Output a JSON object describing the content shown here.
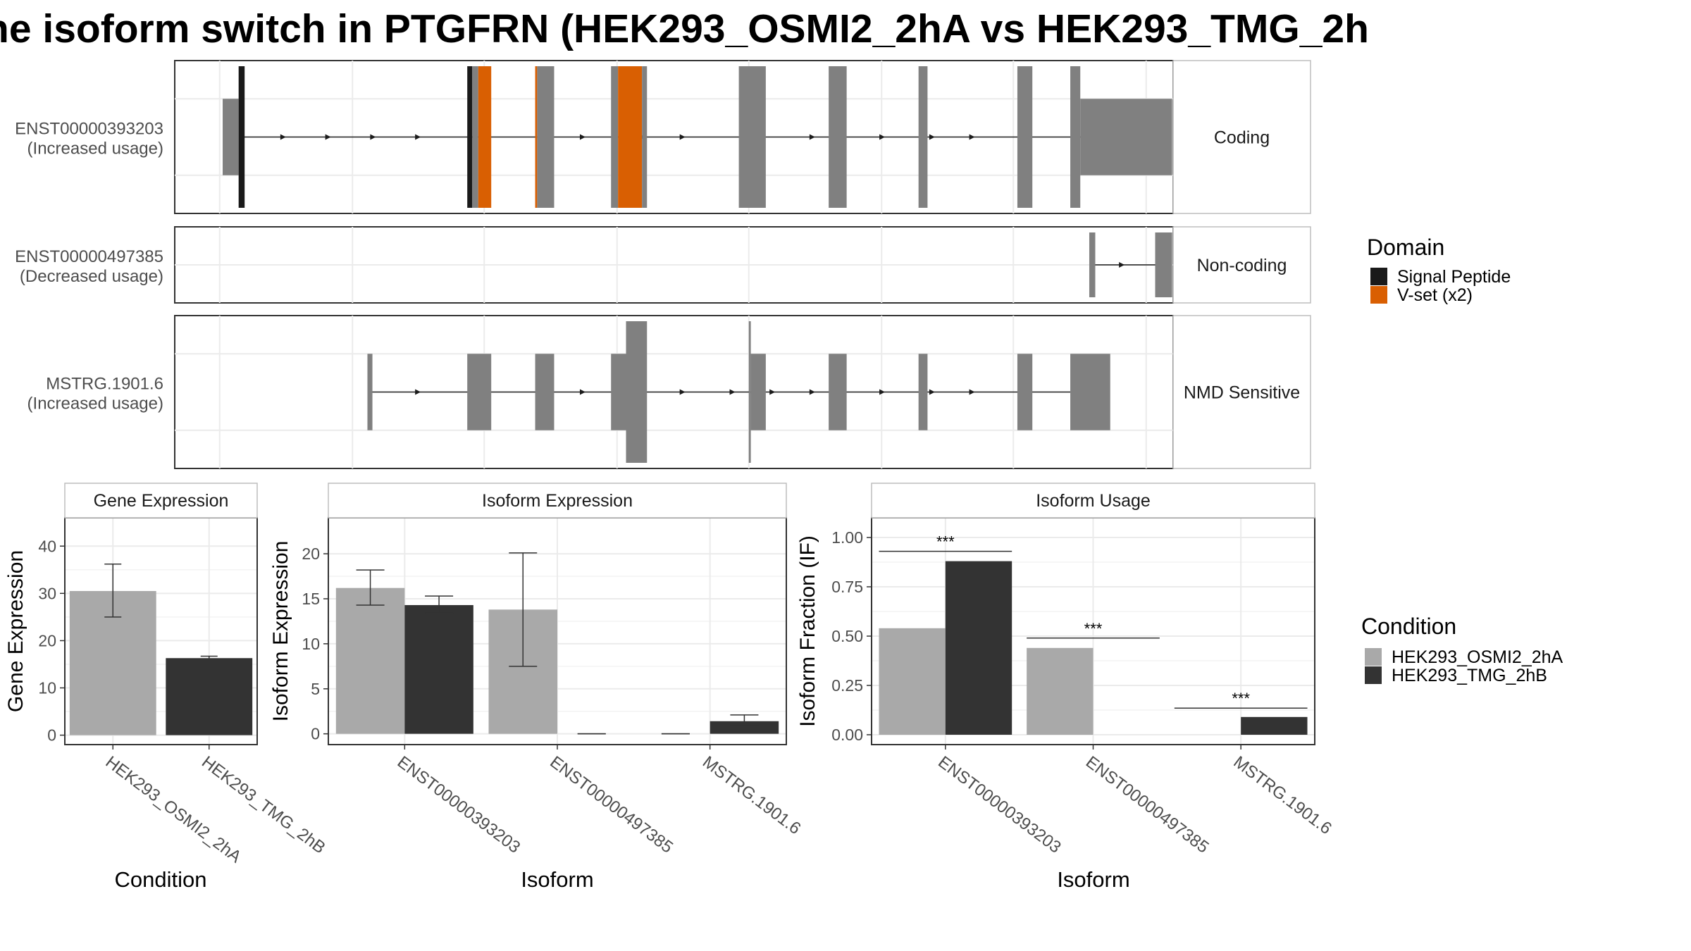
{
  "title": "ne isoform switch in PTGFRN (HEK293_OSMI2_2hA vs HEK293_TMG_2h",
  "colors": {
    "exon": "#808080",
    "signal_peptide": "#1a1a1a",
    "vset": "#d95f02",
    "condA": "#a9a9a9",
    "condB": "#333333",
    "grid": "#ebebeb",
    "panel_border": "#333333",
    "strip_border": "#bdbdbd"
  },
  "transcripts": [
    {
      "id": "ENST00000393203",
      "usage": "(Increased usage)",
      "type_label": "Coding",
      "rows": 2,
      "intron": [
        0.065,
        0.925
      ],
      "arrows": [
        0.11,
        0.155,
        0.2,
        0.245,
        0.41,
        0.47,
        0.51,
        0.64,
        0.71,
        0.76,
        0.8,
        0.85
      ],
      "exons": [
        {
          "x0": 0.048,
          "x1": 0.064,
          "h": "mid",
          "color": "exon"
        },
        {
          "x0": 0.064,
          "x1": 0.07,
          "h": "tall",
          "color": "signal_peptide"
        },
        {
          "x0": 0.293,
          "x1": 0.298,
          "h": "tall",
          "color": "signal_peptide"
        },
        {
          "x0": 0.298,
          "x1": 0.304,
          "h": "tall",
          "color": "exon"
        },
        {
          "x0": 0.304,
          "x1": 0.317,
          "h": "tall",
          "color": "vset"
        },
        {
          "x0": 0.361,
          "x1": 0.363,
          "h": "tall",
          "color": "vset"
        },
        {
          "x0": 0.363,
          "x1": 0.38,
          "h": "tall",
          "color": "exon"
        },
        {
          "x0": 0.437,
          "x1": 0.444,
          "h": "tall",
          "color": "exon"
        },
        {
          "x0": 0.444,
          "x1": 0.468,
          "h": "tall",
          "color": "vset"
        },
        {
          "x0": 0.468,
          "x1": 0.473,
          "h": "tall",
          "color": "exon"
        },
        {
          "x0": 0.565,
          "x1": 0.592,
          "h": "tall",
          "color": "exon"
        },
        {
          "x0": 0.655,
          "x1": 0.673,
          "h": "tall",
          "color": "exon"
        },
        {
          "x0": 0.745,
          "x1": 0.754,
          "h": "tall",
          "color": "exon"
        },
        {
          "x0": 0.844,
          "x1": 0.859,
          "h": "tall",
          "color": "exon"
        },
        {
          "x0": 0.897,
          "x1": 0.907,
          "h": "tall",
          "color": "exon"
        },
        {
          "x0": 0.907,
          "x1": 0.999,
          "h": "mid",
          "color": "exon"
        }
      ]
    },
    {
      "id": "ENST00000497385",
      "usage": "(Decreased usage)",
      "type_label": "Non-coding",
      "rows": 1,
      "intron": [
        0.919,
        0.982
      ],
      "arrows": [
        0.95
      ],
      "exons": [
        {
          "x0": 0.916,
          "x1": 0.922,
          "h": "mid",
          "color": "exon"
        },
        {
          "x0": 0.982,
          "x1": 0.999,
          "h": "mid",
          "color": "exon"
        }
      ]
    },
    {
      "id": "MSTRG.1901.6",
      "usage": "(Increased usage)",
      "type_label": "NMD Sensitive",
      "rows": 2,
      "intron": [
        0.197,
        0.897
      ],
      "arrows": [
        0.245,
        0.41,
        0.47,
        0.51,
        0.56,
        0.6,
        0.64,
        0.71,
        0.76,
        0.8,
        0.85
      ],
      "exons": [
        {
          "x0": 0.193,
          "x1": 0.198,
          "h": "mid",
          "color": "exon"
        },
        {
          "x0": 0.293,
          "x1": 0.317,
          "h": "mid",
          "color": "exon"
        },
        {
          "x0": 0.361,
          "x1": 0.38,
          "h": "mid",
          "color": "exon"
        },
        {
          "x0": 0.437,
          "x1": 0.452,
          "h": "mid",
          "color": "exon"
        },
        {
          "x0": 0.452,
          "x1": 0.473,
          "h": "tall",
          "color": "exon"
        },
        {
          "x0": 0.575,
          "x1": 0.577,
          "h": "tall",
          "color": "exon"
        },
        {
          "x0": 0.577,
          "x1": 0.592,
          "h": "mid",
          "color": "exon"
        },
        {
          "x0": 0.655,
          "x1": 0.673,
          "h": "mid",
          "color": "exon"
        },
        {
          "x0": 0.745,
          "x1": 0.754,
          "h": "mid",
          "color": "exon"
        },
        {
          "x0": 0.844,
          "x1": 0.859,
          "h": "mid",
          "color": "exon"
        },
        {
          "x0": 0.897,
          "x1": 0.937,
          "h": "mid",
          "color": "exon"
        }
      ]
    }
  ],
  "domain_legend": {
    "title": "Domain",
    "entries": [
      {
        "label": "Signal Peptide",
        "color": "signal_peptide"
      },
      {
        "label": "V-set (x2)",
        "color": "vset"
      }
    ]
  },
  "condition_legend": {
    "title": "Condition",
    "entries": [
      {
        "label": "HEK293_OSMI2_2hA",
        "color": "condA"
      },
      {
        "label": "HEK293_TMG_2hB",
        "color": "condB"
      }
    ]
  },
  "chart_data": [
    {
      "type": "bar",
      "title": "Gene Expression",
      "xlabel": "Condition",
      "ylabel": "Gene Expression",
      "categories": [
        "HEK293_OSMI2_2hA",
        "HEK293_TMG_2hB"
      ],
      "values": [
        30.5,
        16.3
      ],
      "error_low": [
        25.0,
        16.0
      ],
      "error_high": [
        36.2,
        16.7
      ],
      "ylim": [
        -2,
        46
      ],
      "yticks": [
        "0",
        "10",
        "20",
        "30",
        "40"
      ],
      "ytick_values": [
        0,
        10,
        20,
        30,
        40
      ],
      "grid": true
    },
    {
      "type": "bar",
      "title": "Isoform Expression",
      "xlabel": "Isoform",
      "ylabel": "Isoform Expression",
      "categories": [
        "ENST00000393203",
        "ENST00000497385",
        "MSTRG.1901.6"
      ],
      "series": [
        {
          "name": "HEK293_OSMI2_2hA",
          "values": [
            16.2,
            13.8,
            0.0
          ],
          "error_low": [
            14.3,
            7.5,
            0.0
          ],
          "error_high": [
            18.2,
            20.1,
            0.0
          ]
        },
        {
          "name": "HEK293_TMG_2hB",
          "values": [
            14.3,
            0.0,
            1.4
          ],
          "error_low": [
            13.4,
            0.0,
            0.9
          ],
          "error_high": [
            15.3,
            0.0,
            2.1
          ]
        }
      ],
      "ylim": [
        -1.2,
        24
      ],
      "yticks": [
        "0",
        "5",
        "10",
        "15",
        "20"
      ],
      "ytick_values": [
        0,
        5,
        10,
        15,
        20
      ],
      "grid": true
    },
    {
      "type": "bar",
      "title": "Isoform Usage",
      "xlabel": "Isoform",
      "ylabel": "Isoform Fraction (IF)",
      "categories": [
        "ENST00000393203",
        "ENST00000497385",
        "MSTRG.1901.6"
      ],
      "series": [
        {
          "name": "HEK293_OSMI2_2hA",
          "values": [
            0.54,
            0.44,
            0.0
          ]
        },
        {
          "name": "HEK293_TMG_2hB",
          "values": [
            0.88,
            0.0,
            0.09
          ]
        }
      ],
      "significance": [
        {
          "label": "***",
          "y": 0.93
        },
        {
          "label": "***",
          "y": 0.49
        },
        {
          "label": "***",
          "y": 0.135
        }
      ],
      "ylim": [
        -0.05,
        1.1
      ],
      "yticks": [
        "0.00",
        "0.25",
        "0.50",
        "0.75",
        "1.00"
      ],
      "ytick_values": [
        0,
        0.25,
        0.5,
        0.75,
        1.0
      ],
      "grid": true
    }
  ]
}
